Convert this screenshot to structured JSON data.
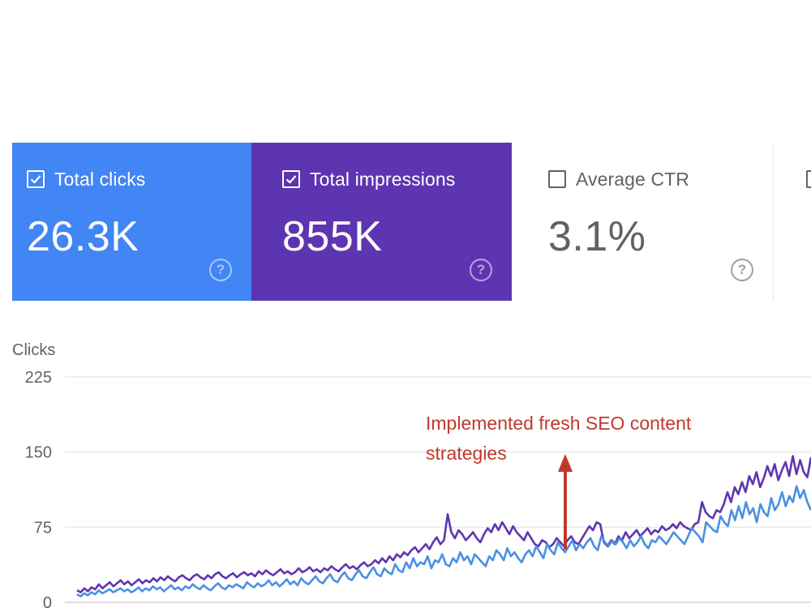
{
  "metrics": [
    {
      "key": "clicks",
      "label": "Total clicks",
      "value": "26.3K",
      "checked": true,
      "color": "#4285f4"
    },
    {
      "key": "impressions",
      "label": "Total impressions",
      "value": "855K",
      "checked": true,
      "color": "#5e35b1"
    },
    {
      "key": "ctr",
      "label": "Average CTR",
      "value": "3.1%",
      "checked": false,
      "color": "#ffffff"
    }
  ],
  "chart_data": {
    "type": "line",
    "ylabel": "Clicks",
    "yticks": [
      0,
      75,
      150,
      225
    ],
    "ylim": [
      0,
      225
    ],
    "grid": true,
    "annotation": {
      "lines": [
        "Implemented fresh SEO content",
        "strategies"
      ],
      "color": "#c0392b"
    },
    "series": [
      {
        "color": "#5e35b1",
        "values": [
          12,
          10,
          14,
          11,
          15,
          13,
          18,
          14,
          17,
          20,
          16,
          19,
          22,
          18,
          21,
          17,
          20,
          23,
          19,
          22,
          20,
          24,
          21,
          25,
          22,
          26,
          23,
          21,
          25,
          27,
          24,
          22,
          26,
          28,
          25,
          23,
          27,
          24,
          28,
          30,
          26,
          24,
          27,
          29,
          25,
          28,
          30,
          27,
          29,
          26,
          31,
          28,
          32,
          29,
          27,
          30,
          33,
          29,
          31,
          28,
          30,
          34,
          30,
          32,
          35,
          31,
          33,
          30,
          34,
          32,
          36,
          33,
          31,
          35,
          38,
          34,
          36,
          33,
          37,
          40,
          36,
          38,
          42,
          39,
          44,
          40,
          46,
          42,
          48,
          45,
          50,
          47,
          52,
          55,
          50,
          54,
          58,
          53,
          60,
          65,
          58,
          62,
          88,
          70,
          64,
          72,
          68,
          62,
          66,
          70,
          64,
          60,
          68,
          74,
          70,
          78,
          72,
          80,
          74,
          68,
          76,
          70,
          66,
          62,
          70,
          64,
          58,
          56,
          62,
          60,
          55,
          58,
          64,
          60,
          56,
          62,
          66,
          60,
          58,
          64,
          70,
          76,
          72,
          80,
          78,
          60,
          56,
          62,
          58,
          66,
          62,
          70,
          64,
          68,
          72,
          66,
          70,
          74,
          68,
          72,
          70,
          76,
          72,
          74,
          78,
          74,
          80,
          76,
          74,
          72,
          78,
          80,
          100,
          90,
          86,
          84,
          92,
          90,
          98,
          110,
          100,
          115,
          108,
          120,
          110,
          126,
          118,
          130,
          115,
          124,
          136,
          126,
          138,
          122,
          132,
          140,
          126,
          146,
          128,
          142,
          130,
          125,
          145
        ]
      },
      {
        "color": "#4a90e2",
        "values": [
          8,
          6,
          9,
          7,
          10,
          8,
          12,
          9,
          11,
          13,
          10,
          12,
          14,
          11,
          13,
          10,
          12,
          15,
          11,
          14,
          12,
          16,
          13,
          15,
          11,
          14,
          17,
          13,
          15,
          12,
          16,
          14,
          18,
          15,
          13,
          17,
          14,
          12,
          16,
          19,
          15,
          13,
          17,
          15,
          18,
          16,
          14,
          20,
          17,
          15,
          19,
          16,
          18,
          22,
          17,
          20,
          16,
          19,
          23,
          18,
          21,
          17,
          24,
          20,
          18,
          22,
          26,
          21,
          19,
          24,
          28,
          22,
          20,
          26,
          30,
          24,
          22,
          28,
          32,
          26,
          24,
          30,
          35,
          28,
          26,
          34,
          30,
          28,
          38,
          32,
          30,
          40,
          34,
          44,
          36,
          40,
          38,
          46,
          34,
          42,
          40,
          48,
          38,
          36,
          44,
          40,
          50,
          42,
          46,
          38,
          48,
          44,
          40,
          36,
          46,
          42,
          52,
          48,
          42,
          54,
          46,
          50,
          44,
          40,
          48,
          52,
          46,
          56,
          50,
          44,
          58,
          52,
          48,
          60,
          54,
          50,
          56,
          62,
          52,
          58,
          54,
          60,
          64,
          56,
          52,
          66,
          60,
          56,
          62,
          58,
          64,
          60,
          54,
          62,
          56,
          60,
          66,
          58,
          54,
          62,
          60,
          66,
          62,
          58,
          64,
          70,
          66,
          62,
          58,
          66,
          74,
          70,
          66,
          60,
          80,
          76,
          72,
          70,
          86,
          80,
          76,
          92,
          82,
          96,
          84,
          100,
          88,
          94,
          80,
          98,
          90,
          86,
          104,
          92,
          98,
          110,
          96,
          106,
          100,
          116,
          104,
          112,
          100,
          92
        ]
      }
    ]
  }
}
